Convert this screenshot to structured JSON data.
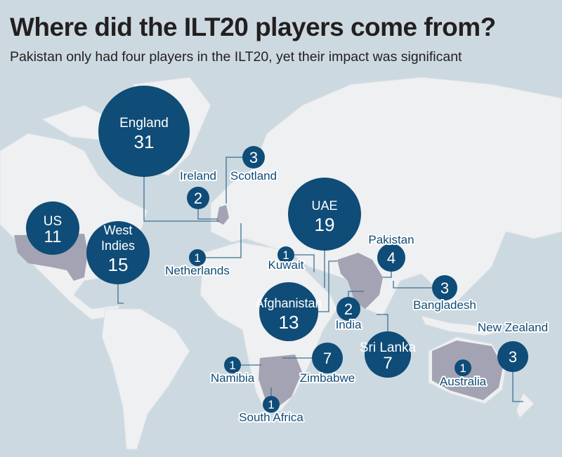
{
  "title": "Where did the ILT20 players come from?",
  "subtitle": "Pakistan only had four players in the ILT20, yet their impact was significant",
  "colors": {
    "ocean": "#ccd9e1",
    "land": "#eef0f1",
    "highlight_country": "#a4a3b3",
    "bubble": "#0f4c77",
    "title": "#231f20"
  },
  "countries": [
    {
      "name": "England",
      "players": 31
    },
    {
      "name": "Scotland",
      "players": 3
    },
    {
      "name": "Ireland",
      "players": 2
    },
    {
      "name": "US",
      "players": 11
    },
    {
      "name": "West Indies",
      "players": 15
    },
    {
      "name": "Netherlands",
      "players": 1
    },
    {
      "name": "UAE",
      "players": 19
    },
    {
      "name": "Kuwait",
      "players": 1
    },
    {
      "name": "Pakistan",
      "players": 4
    },
    {
      "name": "Afghanistan",
      "players": 13
    },
    {
      "name": "India",
      "players": 2
    },
    {
      "name": "Bangladesh",
      "players": 3
    },
    {
      "name": "Sri Lanka",
      "players": 7
    },
    {
      "name": "New Zealand",
      "players": 3
    },
    {
      "name": "Australia",
      "players": 1
    },
    {
      "name": "Zimbabwe",
      "players": 7
    },
    {
      "name": "Namibia",
      "players": 1
    },
    {
      "name": "South Africa",
      "players": 1
    }
  ]
}
